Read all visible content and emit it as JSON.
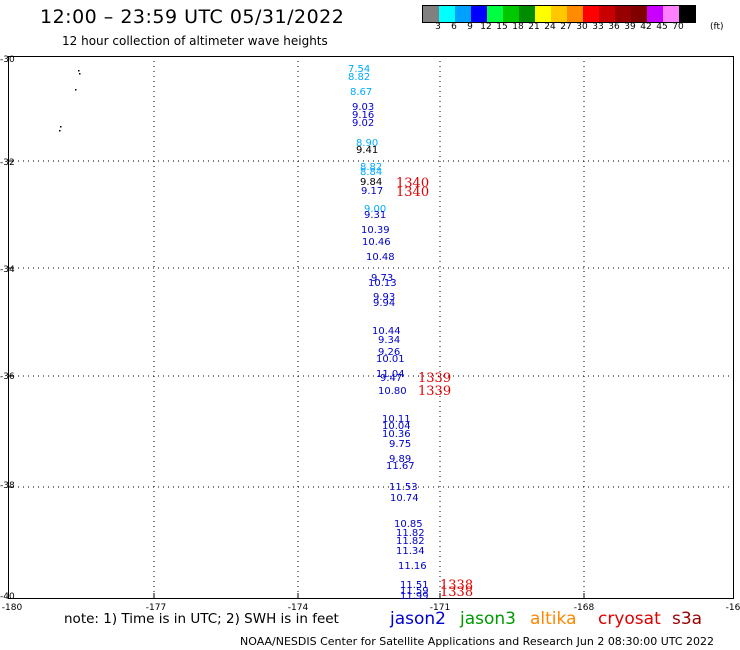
{
  "header": {
    "title": "12:00 – 23:59 UTC 05/31/2022",
    "subtitle": "12 hour collection of altimeter wave heights"
  },
  "legend": {
    "colors": [
      "#808080",
      "#00ffff",
      "#00a0ff",
      "#0000ff",
      "#00ff40",
      "#00c800",
      "#008c00",
      "#ffff00",
      "#ffc800",
      "#ff8c00",
      "#ff0000",
      "#c80000",
      "#960000",
      "#800000",
      "#c800ff",
      "#ff80ff",
      "#000000"
    ],
    "labels": [
      "3",
      "6",
      "9",
      "12",
      "15",
      "18",
      "21",
      "24",
      "27",
      "30",
      "33",
      "36",
      "39",
      "42",
      "45",
      "70"
    ],
    "unit": "(ft)"
  },
  "axes": {
    "lat_labels": [
      "-30",
      "-32",
      "-34",
      "-36",
      "-38",
      "-40"
    ],
    "lon_labels": [
      "-180",
      "-177",
      "-174",
      "-171",
      "-168",
      "-16"
    ]
  },
  "observations": [
    {
      "v": "7.54",
      "c": "#00aaff"
    },
    {
      "v": "8.82",
      "c": "#00aaff"
    },
    {
      "v": "8.67",
      "c": "#00aaff"
    },
    {
      "v": "9.03",
      "c": "#0000cc"
    },
    {
      "v": "9.16",
      "c": "#0000cc"
    },
    {
      "v": "9.02",
      "c": "#0000cc"
    },
    {
      "v": "8.90",
      "c": "#00aaff"
    },
    {
      "v": "9.41",
      "c": "#000000"
    },
    {
      "v": "8.82",
      "c": "#00aaff"
    },
    {
      "v": "8.84",
      "c": "#00aaff"
    },
    {
      "v": "9.84",
      "c": "#000000"
    },
    {
      "v": "9.17",
      "c": "#0000cc"
    },
    {
      "v": "9.00",
      "c": "#00aaff"
    },
    {
      "v": "9.31",
      "c": "#0000cc"
    },
    {
      "v": "10.39",
      "c": "#0000cc"
    },
    {
      "v": "10.46",
      "c": "#0000cc"
    },
    {
      "v": "10.48",
      "c": "#0000cc"
    },
    {
      "v": "9.73",
      "c": "#0000cc"
    },
    {
      "v": "10.13",
      "c": "#0000cc"
    },
    {
      "v": "9.93",
      "c": "#0000cc"
    },
    {
      "v": "9.94",
      "c": "#0000cc"
    },
    {
      "v": "10.44",
      "c": "#0000cc"
    },
    {
      "v": "9.34",
      "c": "#0000cc"
    },
    {
      "v": "9.26",
      "c": "#0000cc"
    },
    {
      "v": "10.01",
      "c": "#0000cc"
    },
    {
      "v": "11.04",
      "c": "#0000cc"
    },
    {
      "v": "9.47",
      "c": "#0000cc"
    },
    {
      "v": "10.80",
      "c": "#0000cc"
    },
    {
      "v": "10.11",
      "c": "#0000cc"
    },
    {
      "v": "10.04",
      "c": "#0000cc"
    },
    {
      "v": "10.36",
      "c": "#0000cc"
    },
    {
      "v": "9.75",
      "c": "#0000cc"
    },
    {
      "v": "9.89",
      "c": "#0000cc"
    },
    {
      "v": "11.67",
      "c": "#0000cc"
    },
    {
      "v": "11.53",
      "c": "#0000cc"
    },
    {
      "v": "10.74",
      "c": "#0000cc"
    },
    {
      "v": "10.85",
      "c": "#0000cc"
    },
    {
      "v": "11.82",
      "c": "#0000cc"
    },
    {
      "v": "11.82",
      "c": "#0000cc"
    },
    {
      "v": "11.34",
      "c": "#0000cc"
    },
    {
      "v": "11.16",
      "c": "#0000cc"
    },
    {
      "v": "11.51",
      "c": "#0000cc"
    },
    {
      "v": "11.59",
      "c": "#0000cc"
    },
    {
      "v": "11.99",
      "c": "#0000cc"
    }
  ],
  "times": [
    "1340",
    "1340",
    "1339",
    "1339",
    "1338",
    "1338"
  ],
  "note": "note: 1) Time is in UTC; 2) SWH is in feet",
  "satellites": [
    {
      "name": "jason2",
      "color": "#0000cc"
    },
    {
      "name": "jason3",
      "color": "#009900"
    },
    {
      "name": "altika",
      "color": "#ff8800"
    },
    {
      "name": "cryosat",
      "color": "#dd0000"
    },
    {
      "name": "s3a",
      "color": "#990000"
    }
  ],
  "footer": "NOAA/NESDIS Center for Satellite Applications and Research    Jun  2 08:30:00 UTC 2022"
}
